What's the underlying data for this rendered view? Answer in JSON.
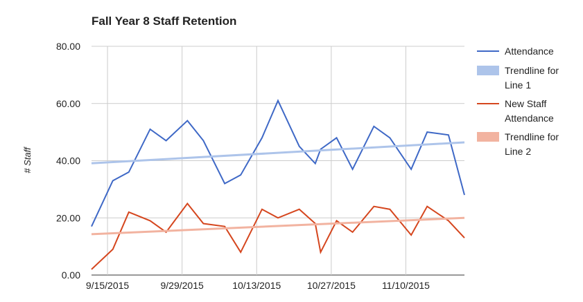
{
  "chart_data": {
    "type": "line",
    "title": "Fall Year 8 Staff Retention",
    "y_label": "# Staff",
    "x": [
      "9/12/2015",
      "9/16/2015",
      "9/19/2015",
      "9/23/2015",
      "9/26/2015",
      "9/30/2015",
      "10/3/2015",
      "10/7/2015",
      "10/10/2015",
      "10/14/2015",
      "10/17/2015",
      "10/21/2015",
      "10/24/2015",
      "10/25/2015",
      "10/28/2015",
      "10/31/2015",
      "11/4/2015",
      "11/7/2015",
      "11/11/2015",
      "11/14/2015",
      "11/18/2015",
      "11/21/2015"
    ],
    "series": [
      {
        "name": "Attendance",
        "color": "#3e68c6",
        "values": [
          17,
          33,
          36,
          51,
          47,
          54,
          47,
          32,
          35,
          48,
          61,
          45,
          39,
          44,
          48,
          37,
          52,
          48,
          37,
          50,
          49,
          28
        ]
      },
      {
        "name": "Trendline for Line 1",
        "color": "#adc4ea",
        "trendline": true,
        "x": [
          "9/12/2015",
          "11/21/2015"
        ],
        "values": [
          39.1,
          46.4
        ]
      },
      {
        "name": "New Staff Attendance",
        "color": "#d5461e",
        "values": [
          2,
          9,
          22,
          19,
          15,
          25,
          18,
          17,
          8,
          23,
          20,
          23,
          18,
          8,
          19,
          15,
          24,
          23,
          14,
          24,
          19,
          13
        ]
      },
      {
        "name": "Trendline for Line 2",
        "color": "#f2b3a0",
        "trendline": true,
        "x": [
          "9/12/2015",
          "11/21/2015"
        ],
        "values": [
          14.3,
          20
        ]
      }
    ],
    "xlim": [
      "9/12/2015",
      "11/21/2015"
    ],
    "xticks": [
      "9/15/2015",
      "9/29/2015",
      "10/13/2015",
      "10/27/2015",
      "11/10/2015"
    ],
    "ylim": [
      0,
      80
    ],
    "yticks": [
      {
        "value": 0,
        "label": "0.00"
      },
      {
        "value": 20,
        "label": "20.00"
      },
      {
        "value": 40,
        "label": "40.00"
      },
      {
        "value": 60,
        "label": "60.00"
      },
      {
        "value": 80,
        "label": "80.00"
      }
    ],
    "grid": true,
    "legend": "right"
  }
}
